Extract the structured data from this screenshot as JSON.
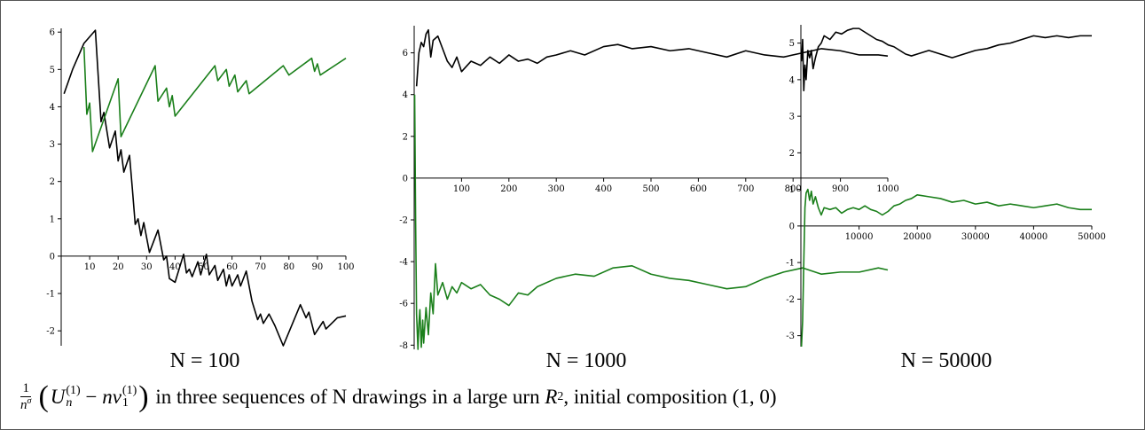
{
  "chart_data": [
    {
      "type": "line",
      "label": "N = 100",
      "xlim": [
        0,
        100
      ],
      "ylim": [
        -2.4,
        6.1
      ],
      "xticks": [
        10,
        20,
        30,
        40,
        50,
        60,
        70,
        80,
        90,
        100
      ],
      "yticks": [
        -2,
        -1,
        0,
        1,
        2,
        3,
        4,
        5,
        6
      ],
      "series": [
        {
          "color": "#000000",
          "x": [
            1,
            4,
            8,
            12,
            14,
            15,
            17,
            19,
            20,
            21,
            22,
            24,
            25,
            26,
            27,
            28,
            29,
            31,
            34,
            36,
            37,
            38,
            40,
            43,
            44,
            45,
            46,
            48,
            49,
            51,
            52,
            54,
            55,
            57,
            58,
            59,
            60,
            62,
            63,
            65,
            67,
            69,
            70,
            71,
            73,
            75,
            78,
            84,
            86,
            87,
            89,
            92,
            93,
            97,
            100
          ],
          "values": [
            4.35,
            5.0,
            5.7,
            6.05,
            3.6,
            3.85,
            2.9,
            3.35,
            2.55,
            2.85,
            2.25,
            2.7,
            1.8,
            0.85,
            1.0,
            0.55,
            0.9,
            0.1,
            0.7,
            -0.1,
            0,
            -0.6,
            -0.7,
            0.05,
            -0.45,
            -0.35,
            -0.55,
            -0.15,
            -0.5,
            0.05,
            -0.5,
            -0.25,
            -0.65,
            -0.35,
            -0.8,
            -0.5,
            -0.8,
            -0.5,
            -0.8,
            -0.4,
            -1.2,
            -1.7,
            -1.55,
            -1.8,
            -1.55,
            -1.85,
            -2.4,
            -1.3,
            -1.65,
            -1.5,
            -2.1,
            -1.75,
            -1.95,
            -1.65,
            -1.6
          ]
        },
        {
          "color": "#1a7f1a",
          "x": [
            8,
            9,
            10,
            11,
            20,
            21,
            33,
            34,
            37,
            38,
            39,
            40,
            54,
            55,
            58,
            59,
            61,
            62,
            65,
            66,
            78,
            80,
            88,
            89,
            90,
            91,
            100
          ],
          "values": [
            5.6,
            3.8,
            4.1,
            2.8,
            4.75,
            3.2,
            5.1,
            4.15,
            4.5,
            4.0,
            4.3,
            3.75,
            5.1,
            4.7,
            5.0,
            4.55,
            4.85,
            4.4,
            4.7,
            4.35,
            5.1,
            4.85,
            5.3,
            4.95,
            5.15,
            4.85,
            5.3
          ]
        }
      ]
    },
    {
      "type": "line",
      "label": "N = 1000",
      "xlim": [
        0,
        1000
      ],
      "ylim": [
        -8.2,
        7.3
      ],
      "xticks": [
        100,
        200,
        300,
        400,
        500,
        600,
        700,
        800,
        900,
        1000
      ],
      "yticks": [
        -8,
        -6,
        -4,
        -2,
        0,
        2,
        4,
        6
      ],
      "series": [
        {
          "color": "#000000",
          "x": [
            5,
            10,
            15,
            20,
            25,
            30,
            35,
            40,
            50,
            60,
            70,
            80,
            90,
            100,
            120,
            140,
            160,
            180,
            200,
            220,
            240,
            260,
            280,
            300,
            330,
            360,
            400,
            430,
            460,
            500,
            540,
            580,
            620,
            660,
            700,
            740,
            780,
            820,
            860,
            900,
            940,
            980,
            1000
          ],
          "values": [
            4.4,
            6.0,
            6.5,
            6.3,
            6.9,
            7.1,
            5.8,
            6.6,
            6.8,
            6.2,
            5.6,
            5.3,
            5.8,
            5.1,
            5.6,
            5.4,
            5.8,
            5.5,
            5.9,
            5.6,
            5.7,
            5.5,
            5.8,
            5.9,
            6.1,
            5.9,
            6.3,
            6.4,
            6.2,
            6.3,
            6.1,
            6.2,
            6.0,
            5.8,
            6.1,
            5.9,
            5.8,
            6.0,
            6.2,
            6.1,
            5.9,
            5.9,
            5.85
          ]
        },
        {
          "color": "#1a7f1a",
          "x": [
            1,
            3,
            5,
            8,
            10,
            12,
            15,
            18,
            20,
            25,
            30,
            35,
            40,
            45,
            50,
            60,
            70,
            80,
            90,
            100,
            120,
            140,
            160,
            180,
            200,
            220,
            240,
            260,
            300,
            340,
            380,
            420,
            460,
            500,
            540,
            580,
            620,
            660,
            700,
            740,
            780,
            820,
            860,
            900,
            940,
            980,
            1000
          ],
          "values": [
            4.0,
            -2,
            -6.5,
            -8.2,
            -7.0,
            -6.3,
            -8.1,
            -6.8,
            -7.9,
            -6.2,
            -7.5,
            -5.5,
            -6.5,
            -4.1,
            -5.6,
            -5.0,
            -5.8,
            -5.2,
            -5.5,
            -5.0,
            -5.3,
            -5.1,
            -5.6,
            -5.8,
            -6.1,
            -5.5,
            -5.6,
            -5.2,
            -4.8,
            -4.6,
            -4.7,
            -4.3,
            -4.2,
            -4.6,
            -4.8,
            -4.9,
            -5.1,
            -5.3,
            -5.2,
            -4.8,
            -4.5,
            -4.3,
            -4.6,
            -4.5,
            -4.5,
            -4.3,
            -4.4
          ]
        }
      ]
    },
    {
      "type": "line",
      "label": "N = 50000",
      "xlim": [
        0,
        50000
      ],
      "ylim": [
        -3.3,
        5.5
      ],
      "xticks": [
        10000,
        20000,
        30000,
        40000,
        50000
      ],
      "yticks": [
        -3,
        -2,
        -1,
        0,
        1,
        2,
        3,
        4,
        5
      ],
      "series": [
        {
          "color": "#000000",
          "x": [
            100,
            300,
            500,
            700,
            900,
            1200,
            1500,
            1800,
            2100,
            2500,
            3000,
            3500,
            4000,
            5000,
            6000,
            7000,
            8000,
            9000,
            10000,
            11000,
            12000,
            13000,
            14000,
            15000,
            16000,
            17000,
            18000,
            19000,
            20000,
            22000,
            24000,
            26000,
            28000,
            30000,
            32000,
            34000,
            36000,
            38000,
            40000,
            42000,
            44000,
            46000,
            48000,
            50000
          ],
          "values": [
            4.5,
            5.1,
            3.7,
            4.4,
            4.0,
            4.8,
            4.6,
            4.8,
            4.3,
            4.6,
            4.9,
            5.0,
            5.2,
            5.1,
            5.3,
            5.25,
            5.35,
            5.4,
            5.4,
            5.3,
            5.2,
            5.1,
            5.05,
            4.95,
            4.9,
            4.8,
            4.7,
            4.65,
            4.7,
            4.8,
            4.7,
            4.6,
            4.7,
            4.8,
            4.85,
            4.95,
            5.0,
            5.1,
            5.2,
            5.15,
            5.2,
            5.15,
            5.2,
            5.2
          ]
        },
        {
          "color": "#1a7f1a",
          "x": [
            100,
            300,
            500,
            700,
            900,
            1200,
            1500,
            1800,
            2100,
            2500,
            3000,
            3500,
            4000,
            5000,
            6000,
            7000,
            8000,
            9000,
            10000,
            11000,
            12000,
            13000,
            14000,
            15000,
            16000,
            17000,
            18000,
            19000,
            20000,
            22000,
            24000,
            26000,
            28000,
            30000,
            32000,
            34000,
            36000,
            38000,
            40000,
            42000,
            44000,
            46000,
            48000,
            50000
          ],
          "values": [
            -3.3,
            -2.6,
            -1,
            0.5,
            0.9,
            1.0,
            0.7,
            0.95,
            0.6,
            0.8,
            0.5,
            0.3,
            0.5,
            0.45,
            0.5,
            0.35,
            0.45,
            0.5,
            0.45,
            0.55,
            0.45,
            0.4,
            0.3,
            0.4,
            0.55,
            0.6,
            0.7,
            0.75,
            0.85,
            0.8,
            0.75,
            0.65,
            0.7,
            0.6,
            0.65,
            0.55,
            0.6,
            0.55,
            0.5,
            0.55,
            0.6,
            0.5,
            0.45,
            0.45
          ]
        }
      ]
    }
  ],
  "caption": {
    "frac_num": "1",
    "frac_den": "n",
    "frac_den_sup": "σ",
    "open": "(",
    "u": "U",
    "u_sub": "n",
    "u_sup": "(1)",
    "minus": " − ",
    "nv": "nv",
    "nv_sub": "1",
    "nv_sup": "(1)",
    "close": ")",
    "text": " in three sequences of N drawings in a large urn ",
    "r": "R",
    "r_sub": "2",
    "tail": ", initial composition (1, 0)"
  }
}
